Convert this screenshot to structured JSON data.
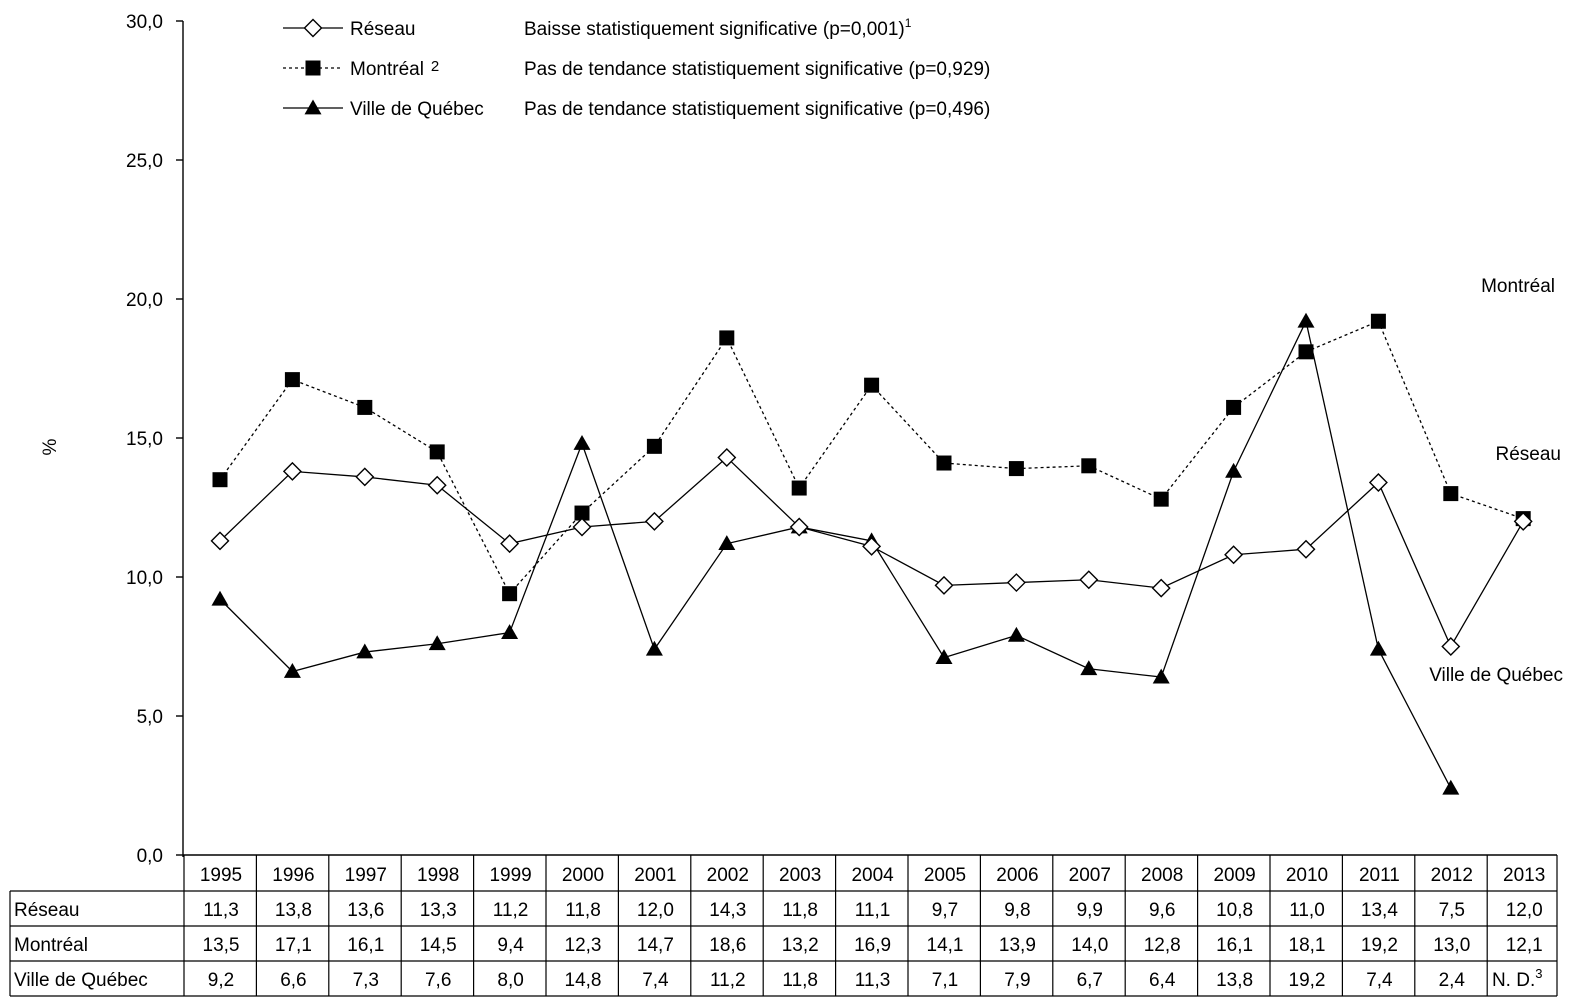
{
  "chart_data": {
    "type": "line",
    "ylabel": "%",
    "ylim": [
      0,
      30
    ],
    "yticks": [
      "0,0",
      "5,0",
      "10,0",
      "15,0",
      "20,0",
      "25,0",
      "30,0"
    ],
    "ytick_values": [
      0,
      5,
      10,
      15,
      20,
      25,
      30
    ],
    "categories": [
      "1995",
      "1996",
      "1997",
      "1998",
      "1999",
      "2000",
      "2001",
      "2002",
      "2003",
      "2004",
      "2005",
      "2006",
      "2007",
      "2008",
      "2009",
      "2010",
      "2011",
      "2012",
      "2013"
    ],
    "series": [
      {
        "name": "Réseau",
        "legend_label": "Réseau",
        "trend": "Baisse statistiquement significative  (p=0,001)",
        "trend_note": "1",
        "end_label": "Réseau",
        "marker": "diamond",
        "line": "solid",
        "values": [
          11.3,
          13.8,
          13.6,
          13.3,
          11.2,
          11.8,
          12.0,
          14.3,
          11.8,
          11.1,
          9.7,
          9.8,
          9.9,
          9.6,
          10.8,
          11.0,
          13.4,
          7.5,
          12.0
        ],
        "table_values": [
          "11,3",
          "13,8",
          "13,6",
          "13,3",
          "11,2",
          "11,8",
          "12,0",
          "14,3",
          "11,8",
          "11,1",
          "9,7",
          "9,8",
          "9,9",
          "9,6",
          "10,8",
          "11,0",
          "13,4",
          "7,5",
          "12,0"
        ]
      },
      {
        "name": "Montréal",
        "legend_label": "Montréal",
        "legend_note": "2",
        "trend": "Pas de tendance statistiquement significative  (p=0,929)",
        "end_label": "Montréal",
        "marker": "square",
        "line": "dashed",
        "values": [
          13.5,
          17.1,
          16.1,
          14.5,
          9.4,
          12.3,
          14.7,
          18.6,
          13.2,
          16.9,
          14.1,
          13.9,
          14.0,
          12.8,
          16.1,
          18.1,
          19.2,
          13.0,
          12.1
        ],
        "table_values": [
          "13,5",
          "17,1",
          "16,1",
          "14,5",
          "9,4",
          "12,3",
          "14,7",
          "18,6",
          "13,2",
          "16,9",
          "14,1",
          "13,9",
          "14,0",
          "12,8",
          "16,1",
          "18,1",
          "19,2",
          "13,0",
          "12,1"
        ]
      },
      {
        "name": "Ville de Québec",
        "legend_label": "Ville de Québec",
        "trend": "Pas de tendance statistiquement significative  (p=0,496)",
        "end_label": "Ville de Québec",
        "marker": "triangle",
        "line": "solid",
        "values": [
          9.2,
          6.6,
          7.3,
          7.6,
          8.0,
          14.8,
          7.4,
          11.2,
          11.8,
          11.3,
          7.1,
          7.9,
          6.7,
          6.4,
          13.8,
          19.2,
          7.4,
          2.4,
          null
        ],
        "table_values": [
          "9,2",
          "6,6",
          "7,3",
          "7,6",
          "8,0",
          "14,8",
          "7,4",
          "11,2",
          "11,8",
          "11,3",
          "7,1",
          "7,9",
          "6,7",
          "6,4",
          "13,8",
          "19,2",
          "7,4",
          "2,4",
          "N. D."
        ],
        "table_last_note": "3"
      }
    ],
    "grid": false,
    "legend_position": "top-left"
  }
}
